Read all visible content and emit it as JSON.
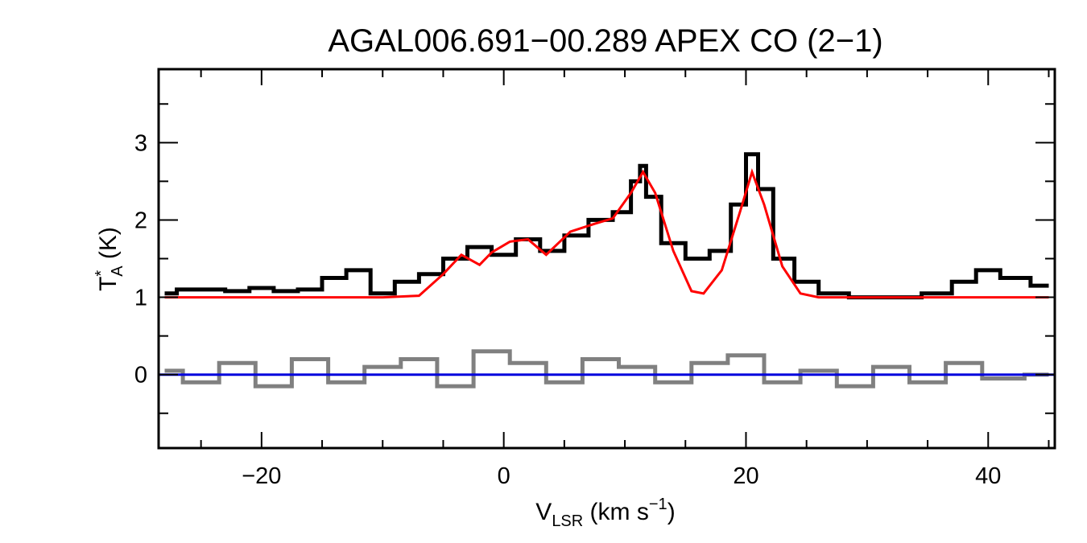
{
  "chart_data": {
    "type": "line",
    "title": "AGAL006.691−00.289  APEX CO (2−1)",
    "xlabel": {
      "main": "V",
      "sub": "LSR",
      "unit": " (km s",
      "exp": "−1",
      "close": ")"
    },
    "ylabel": {
      "main": "T",
      "sup": "*",
      "sub": "A",
      "unit": " (K)"
    },
    "xlim": [
      -28.5,
      45.5
    ],
    "ylim": [
      -0.95,
      3.95
    ],
    "x_ticks": [
      {
        "value": -20,
        "label": "−20"
      },
      {
        "value": 0,
        "label": "0"
      },
      {
        "value": 20,
        "label": "20"
      },
      {
        "value": 40,
        "label": "40"
      }
    ],
    "y_ticks": [
      {
        "value": 0,
        "label": "0"
      },
      {
        "value": 1,
        "label": "1"
      },
      {
        "value": 2,
        "label": "2"
      },
      {
        "value": 3,
        "label": "3"
      }
    ],
    "grid": false,
    "legend": "none",
    "series": [
      {
        "role": "observed spectrum",
        "style": "histogram",
        "color": "#000000",
        "x": [
          -28,
          -26,
          -24,
          -22,
          -20,
          -18,
          -16,
          -14,
          -12,
          -10,
          -8,
          -6,
          -4,
          -2,
          0,
          2,
          4,
          6,
          8,
          10,
          11,
          11.5,
          12,
          14,
          16,
          18,
          19.5,
          20.5,
          21.5,
          23,
          25,
          27,
          30,
          33,
          36,
          38,
          40,
          42,
          45
        ],
        "y": [
          1.05,
          1.1,
          1.1,
          1.08,
          1.12,
          1.08,
          1.1,
          1.25,
          1.35,
          1.05,
          1.2,
          1.3,
          1.5,
          1.65,
          1.55,
          1.75,
          1.6,
          1.8,
          2.0,
          2.1,
          2.5,
          2.7,
          2.3,
          1.7,
          1.5,
          1.6,
          2.2,
          2.85,
          2.4,
          1.5,
          1.2,
          1.05,
          1.0,
          1.0,
          1.05,
          1.2,
          1.35,
          1.25,
          1.15
        ]
      },
      {
        "role": "gaussian fit",
        "style": "line",
        "color": "#ff0000",
        "x": [
          -28,
          -10,
          -7,
          -5,
          -3.5,
          -2,
          -1,
          0.5,
          2,
          3.5,
          5.5,
          7.5,
          9,
          10.5,
          11.5,
          12.5,
          14,
          15.5,
          16.5,
          18,
          19.5,
          20.5,
          21.5,
          23,
          24.5,
          26,
          45
        ],
        "y": [
          1.0,
          1.0,
          1.02,
          1.3,
          1.55,
          1.42,
          1.58,
          1.72,
          1.75,
          1.55,
          1.85,
          1.95,
          2.02,
          2.35,
          2.62,
          2.35,
          1.6,
          1.08,
          1.05,
          1.35,
          2.1,
          2.62,
          2.2,
          1.4,
          1.05,
          1.0,
          1.0
        ]
      },
      {
        "role": "residual",
        "style": "histogram",
        "color": "#808080",
        "x": [
          -28,
          -25,
          -22,
          -19,
          -16,
          -13,
          -10,
          -7,
          -4,
          -1,
          2,
          5,
          8,
          11,
          14,
          17,
          20,
          23,
          26,
          29,
          32,
          35,
          38,
          41,
          45
        ],
        "y": [
          0.05,
          -0.1,
          0.15,
          -0.15,
          0.2,
          -0.1,
          0.1,
          0.2,
          -0.15,
          0.3,
          0.15,
          -0.1,
          0.2,
          0.1,
          -0.1,
          0.15,
          0.25,
          -0.1,
          0.05,
          -0.15,
          0.1,
          -0.1,
          0.15,
          -0.05,
          0.0
        ]
      },
      {
        "role": "zero baseline",
        "style": "line",
        "color": "#0000dd",
        "x": [
          -28.5,
          45.5
        ],
        "y": [
          0,
          0
        ]
      }
    ]
  }
}
